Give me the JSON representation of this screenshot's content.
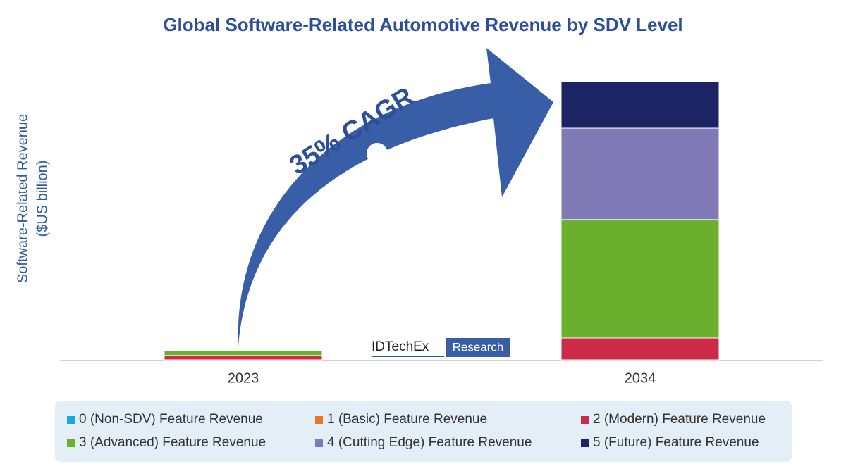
{
  "chart_data": {
    "type": "stacked_bar",
    "title": "Global Software-Related Automotive Revenue by SDV Level",
    "y_label": [
      "Software-Related Revenue",
      "($US billion)"
    ],
    "annotation": "35% CAGR",
    "logo": {
      "name": "IDTechEx",
      "tag": "Research"
    },
    "categories": [
      "2023",
      "2034"
    ],
    "series": [
      {
        "name": "0 (Non-SDV) Feature Revenue",
        "color": "#1aa7e0",
        "values": [
          0,
          0
        ]
      },
      {
        "name": "1 (Basic) Feature Revenue",
        "color": "#e87722",
        "values": [
          0,
          0
        ]
      },
      {
        "name": "2 (Modern) Feature Revenue",
        "color": "#cc2a45",
        "values": [
          11,
          55
        ]
      },
      {
        "name": "3 (Advanced) Feature Revenue",
        "color": "#6ab02e",
        "values": [
          12,
          298
        ]
      },
      {
        "name": "4 (Cutting Edge) Feature Revenue",
        "color": "#7f79b5",
        "values": [
          0,
          230
        ]
      },
      {
        "name": "5 (Future) Feature Revenue",
        "color": "#1c2466",
        "values": [
          0,
          117
        ]
      }
    ],
    "ylim": [
      0,
      700
    ]
  }
}
